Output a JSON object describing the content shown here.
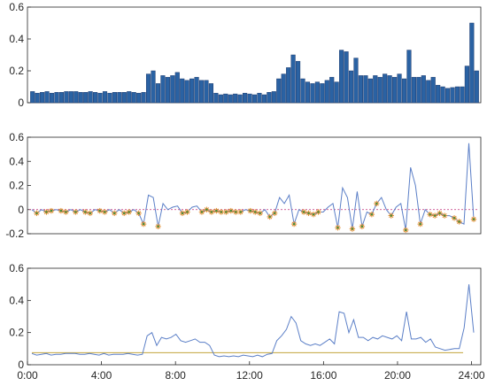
{
  "chart_data": [
    {
      "type": "bar",
      "ylim": [
        0,
        0.6
      ],
      "yticks": [
        0,
        0.2,
        0.4,
        0.6
      ],
      "ytick_labels": [
        "0",
        "0.2",
        "0.4",
        "0.6"
      ],
      "colors": {
        "bar_fill": "#2a62a3",
        "bar_edge": "#1f3b6e"
      },
      "values": [
        0.07,
        0.06,
        0.065,
        0.07,
        0.06,
        0.065,
        0.065,
        0.07,
        0.07,
        0.07,
        0.065,
        0.065,
        0.07,
        0.065,
        0.06,
        0.07,
        0.06,
        0.065,
        0.065,
        0.065,
        0.07,
        0.065,
        0.06,
        0.065,
        0.18,
        0.2,
        0.12,
        0.17,
        0.16,
        0.17,
        0.19,
        0.15,
        0.14,
        0.15,
        0.16,
        0.14,
        0.14,
        0.12,
        0.06,
        0.05,
        0.055,
        0.05,
        0.055,
        0.05,
        0.06,
        0.055,
        0.05,
        0.06,
        0.05,
        0.065,
        0.07,
        0.15,
        0.18,
        0.22,
        0.3,
        0.26,
        0.15,
        0.13,
        0.12,
        0.13,
        0.12,
        0.14,
        0.16,
        0.13,
        0.33,
        0.32,
        0.2,
        0.28,
        0.17,
        0.17,
        0.15,
        0.17,
        0.16,
        0.18,
        0.17,
        0.16,
        0.18,
        0.15,
        0.33,
        0.16,
        0.16,
        0.17,
        0.14,
        0.16,
        0.11,
        0.1,
        0.09,
        0.095,
        0.1,
        0.1,
        0.23,
        0.5,
        0.2
      ]
    },
    {
      "type": "line",
      "ylim": [
        -0.2,
        0.6
      ],
      "yticks": [
        -0.2,
        0,
        0.2,
        0.4,
        0.6
      ],
      "ytick_labels": [
        "-0.2",
        "0",
        "0.2",
        "0.4",
        "0.6"
      ],
      "colors": {
        "line": "#5b7fc7",
        "marker": "#e08a2c",
        "marker_inner": "#3f8f3f",
        "dashed": "#c0307a"
      },
      "values": [
        0.0,
        -0.03,
        0.0,
        -0.02,
        -0.01,
        0.0,
        -0.01,
        -0.02,
        0.0,
        -0.02,
        0.0,
        -0.02,
        -0.03,
        0.0,
        -0.01,
        -0.02,
        0.0,
        -0.03,
        0.0,
        -0.03,
        -0.02,
        0.0,
        -0.03,
        -0.12,
        0.12,
        0.1,
        -0.14,
        0.05,
        0.0,
        0.02,
        0.03,
        -0.03,
        -0.02,
        0.02,
        0.03,
        -0.02,
        0.0,
        -0.02,
        -0.01,
        -0.02,
        -0.02,
        -0.01,
        -0.02,
        -0.02,
        0.0,
        -0.01,
        -0.02,
        -0.03,
        0.0,
        -0.06,
        -0.03,
        0.1,
        0.05,
        0.12,
        -0.12,
        0.0,
        -0.02,
        -0.03,
        -0.04,
        -0.02,
        -0.02,
        0.02,
        0.05,
        -0.15,
        0.18,
        0.1,
        -0.16,
        0.15,
        -0.14,
        -0.02,
        -0.04,
        0.05,
        0.1,
        0.0,
        -0.05,
        0.02,
        0.05,
        -0.17,
        0.35,
        0.2,
        -0.12,
        0.0,
        -0.04,
        -0.05,
        -0.03,
        -0.05,
        -0.05,
        -0.07,
        -0.1,
        -0.12,
        0.55,
        -0.08
      ],
      "marker_indices": [
        1,
        3,
        4,
        6,
        7,
        9,
        11,
        12,
        14,
        15,
        17,
        19,
        20,
        22,
        23,
        26,
        31,
        32,
        35,
        36,
        37,
        38,
        39,
        40,
        41,
        42,
        43,
        45,
        46,
        47,
        49,
        50,
        54,
        56,
        57,
        58,
        59,
        63,
        66,
        68,
        70,
        71,
        74,
        77,
        80,
        82,
        83,
        84,
        85,
        87,
        88,
        91
      ]
    },
    {
      "type": "line",
      "ylim": [
        0,
        0.6
      ],
      "yticks": [
        0,
        0.2,
        0.4,
        0.6
      ],
      "ytick_labels": [
        "0",
        "0.2",
        "0.4",
        "0.6"
      ],
      "x_tick_labels": [
        "0:00",
        "4:00",
        "8:00",
        "12:00",
        "16:00",
        "20:00",
        "24:00"
      ],
      "x_tick_hours": [
        0,
        4,
        8,
        12,
        16,
        20,
        24
      ],
      "x_range_hours": [
        0,
        24.5
      ],
      "colors": {
        "line": "#5b7fc7",
        "threshold": "#c2a53d"
      },
      "threshold": 0.075,
      "values": [
        0.07,
        0.06,
        0.065,
        0.07,
        0.06,
        0.065,
        0.065,
        0.07,
        0.07,
        0.07,
        0.065,
        0.065,
        0.07,
        0.065,
        0.06,
        0.07,
        0.06,
        0.065,
        0.065,
        0.065,
        0.07,
        0.065,
        0.06,
        0.065,
        0.18,
        0.2,
        0.12,
        0.17,
        0.16,
        0.17,
        0.19,
        0.15,
        0.14,
        0.15,
        0.16,
        0.14,
        0.14,
        0.12,
        0.06,
        0.05,
        0.055,
        0.05,
        0.055,
        0.05,
        0.06,
        0.055,
        0.05,
        0.06,
        0.05,
        0.065,
        0.07,
        0.15,
        0.18,
        0.22,
        0.3,
        0.26,
        0.15,
        0.13,
        0.12,
        0.13,
        0.12,
        0.14,
        0.16,
        0.13,
        0.33,
        0.32,
        0.2,
        0.28,
        0.17,
        0.17,
        0.15,
        0.17,
        0.16,
        0.18,
        0.17,
        0.16,
        0.18,
        0.15,
        0.33,
        0.16,
        0.16,
        0.17,
        0.14,
        0.16,
        0.11,
        0.1,
        0.09,
        0.095,
        0.1,
        0.1,
        0.23,
        0.5,
        0.2
      ]
    }
  ]
}
